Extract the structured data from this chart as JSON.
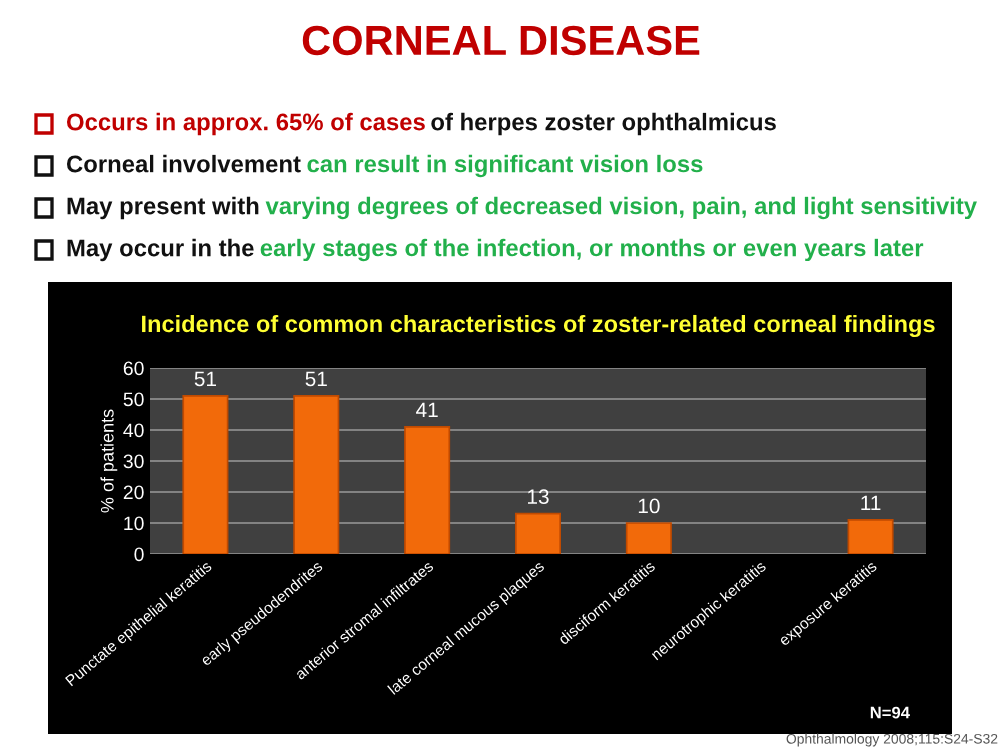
{
  "chart_data": {
    "type": "bar",
    "title": "Incidence of common characteristics of zoster-related corneal findings",
    "ylabel": "% of patients",
    "categories": [
      "Punctate epithelial keratitis",
      "early pseudodendrites",
      "anterior stromal infiltrates",
      "late corneal mucous plaques",
      "disciform keratitis",
      "neurotrophic keratitis",
      "exposure keratitis"
    ],
    "values": [
      51,
      51,
      41,
      13,
      10,
      null,
      11
    ],
    "color": "#f26a0a",
    "ylim": [
      0,
      60
    ],
    "yticks": [
      0,
      10,
      20,
      30,
      40,
      50,
      60
    ],
    "grid": "y",
    "data_labels": true,
    "annotations": [
      "CORNEAL DISEASE",
      "Occurs in approx. 65% of cases",
      " of herpes zoster ophthalmicus",
      "Corneal involvement ",
      "can result in significant vision loss",
      "May present with ",
      "varying degrees of decreased vision, pain, and light sensitivity",
      "May occur in the ",
      "early stages of the infection, or months or even years later",
      "N=94",
      "Ophthalmology 2008;115:S24-S32"
    ]
  }
}
